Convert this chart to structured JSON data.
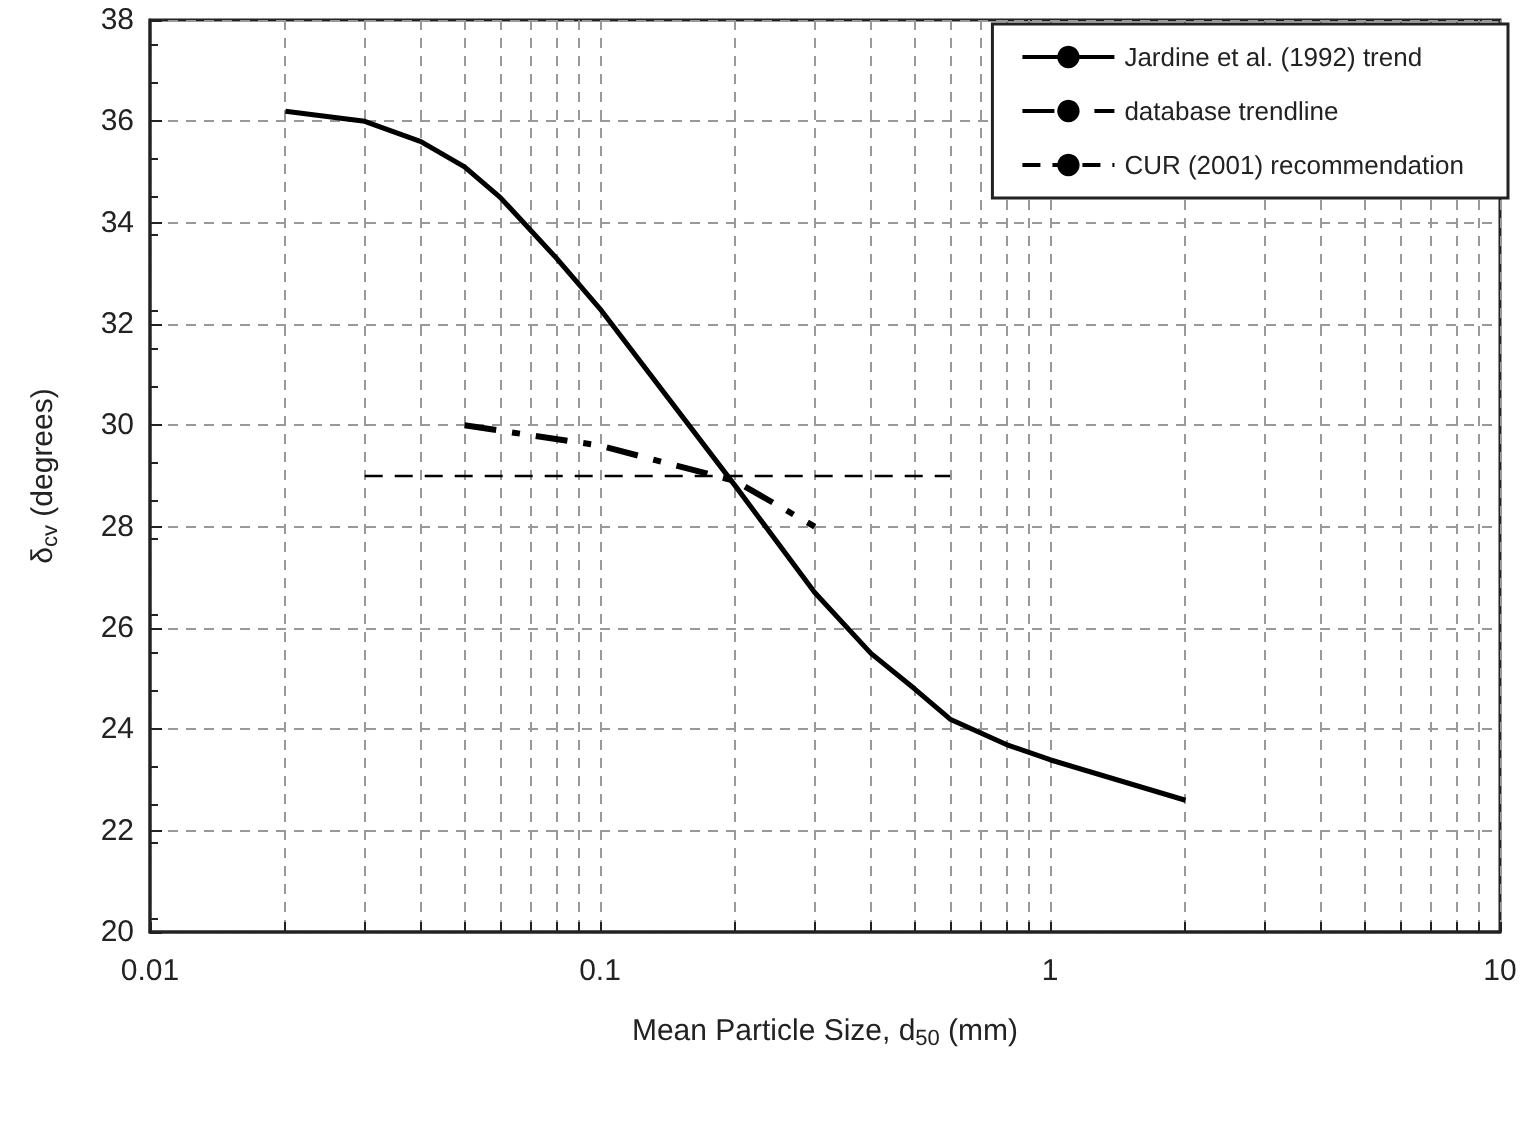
{
  "chart_data": {
    "type": "line",
    "xlabel": "Mean Particle Size, d$_{50}$ (mm)",
    "ylabel": "δ$_{cv}$ (degrees)",
    "log": "x",
    "xlim": [
      0.01,
      10
    ],
    "xticks": [
      0.01,
      {
        "value": 0.02,
        "label": null
      },
      {
        "value": 0.03,
        "label": null
      },
      {
        "value": 0.04,
        "label": null
      },
      {
        "value": 0.05,
        "label": null
      },
      {
        "value": 0.06,
        "label": null
      },
      {
        "value": 0.07,
        "label": null
      },
      {
        "value": 0.08,
        "label": null
      },
      {
        "value": 0.09,
        "label": null
      },
      0.1,
      {
        "value": 0.2,
        "label": null
      },
      {
        "value": 0.3,
        "label": null
      },
      {
        "value": 0.4,
        "label": null
      },
      {
        "value": 0.5,
        "label": null
      },
      {
        "value": 0.6,
        "label": null
      },
      {
        "value": 0.7,
        "label": null
      },
      {
        "value": 0.8,
        "label": null
      },
      {
        "value": 0.9,
        "label": null
      },
      1,
      {
        "value": 2,
        "label": null
      },
      {
        "value": 3,
        "label": null
      },
      {
        "value": 4,
        "label": null
      },
      {
        "value": 5,
        "label": null
      },
      {
        "value": 6,
        "label": null
      },
      {
        "value": 7,
        "label": null
      },
      {
        "value": 8,
        "label": null
      },
      {
        "value": 9,
        "label": null
      },
      10
    ],
    "ylim": [
      20,
      38
    ],
    "yticks": [
      20,
      22,
      24,
      26,
      28,
      30,
      32,
      34,
      36,
      38
    ],
    "grid": true,
    "legend": "top right",
    "marker": "none",
    "series": [
      {
        "name": "Jardine et al. (1992) trend",
        "color": "#000000",
        "line_style": "solid",
        "x": [
          0.02,
          0.03,
          0.04,
          0.05,
          0.06,
          0.08,
          0.1,
          0.2,
          0.3,
          0.4,
          0.5,
          0.6,
          0.8,
          1,
          2
        ],
        "values": [
          36.2,
          36.0,
          35.6,
          35.1,
          34.5,
          33.3,
          32.3,
          28.8,
          26.7,
          25.5,
          24.8,
          24.2,
          23.7,
          23.4,
          22.6
        ]
      },
      {
        "name": "database trendline",
        "color": "#000000",
        "line_style": "dashdot",
        "x": [
          0.05,
          0.1,
          0.2,
          0.3
        ],
        "values": [
          30.0,
          29.6,
          28.9,
          28.0
        ]
      },
      {
        "name": "CUR (2001) recommendation",
        "color": "#000000",
        "line_style": "dashed",
        "x": [
          0.03,
          0.6
        ],
        "values": [
          29.0,
          29.0
        ]
      }
    ]
  }
}
